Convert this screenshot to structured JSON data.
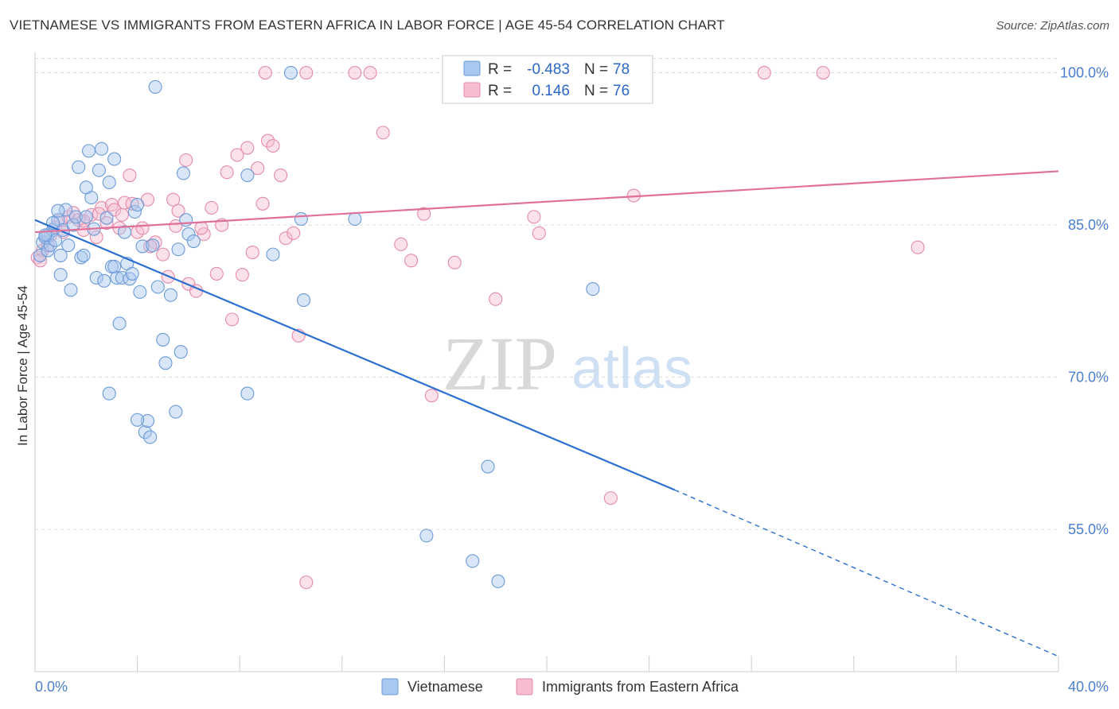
{
  "header": {
    "title": "VIETNAMESE VS IMMIGRANTS FROM EASTERN AFRICA IN LABOR FORCE | AGE 45-54 CORRELATION CHART",
    "source": "Source: ZipAtlas.com"
  },
  "watermark": {
    "zip": "ZIP",
    "atlas": "atlas"
  },
  "legend": {
    "r_label": "R =",
    "n_label": "N =",
    "rows": [
      {
        "series": "Vietnamese",
        "r": "-0.483",
        "n": "78"
      },
      {
        "series": "Immigrants from Eastern Africa",
        "r": "0.146",
        "n": "76"
      }
    ]
  },
  "colors": {
    "vietnamese_fill": "#a9c8f0",
    "vietnamese_stroke": "#6c9ad8",
    "vietnamese_line": "#2b6fd0",
    "eastern_africa_fill": "#f6bcd0",
    "eastern_africa_stroke": "#e48aaa",
    "eastern_africa_line": "#e0709a",
    "tick_label": "#4a7fd0",
    "grid": "#dddddd"
  },
  "chart_data": {
    "type": "scatter",
    "title": "VIETNAMESE VS IMMIGRANTS FROM EASTERN AFRICA IN LABOR FORCE | AGE 45-54 CORRELATION CHART",
    "xlabel": "",
    "ylabel": "In Labor Force | Age 45-54",
    "xlim": [
      0,
      40
    ],
    "ylim": [
      41,
      102
    ],
    "x_tick_labels": [
      "0.0%",
      "40.0%"
    ],
    "y_ticks": [
      55,
      70,
      85,
      100
    ],
    "y_tick_labels": [
      "55.0%",
      "70.0%",
      "85.0%",
      "100.0%"
    ],
    "grid": true,
    "legend_position": "top-center",
    "series": [
      {
        "name": "Vietnamese",
        "r": -0.483,
        "n": 78,
        "trend": {
          "x": [
            0,
            25
          ],
          "y": [
            85.5,
            58.9
          ],
          "dashed_to": [
            40,
            42.5
          ]
        },
        "points": [
          [
            0.2,
            82.0
          ],
          [
            0.3,
            83.3
          ],
          [
            0.4,
            83.8
          ],
          [
            0.5,
            82.5
          ],
          [
            0.5,
            84.0
          ],
          [
            0.6,
            83.0
          ],
          [
            0.7,
            84.5
          ],
          [
            0.8,
            83.5
          ],
          [
            0.9,
            85.5
          ],
          [
            1.0,
            82.0
          ],
          [
            1.1,
            84.5
          ],
          [
            1.2,
            86.5
          ],
          [
            1.3,
            83.0
          ],
          [
            1.4,
            78.6
          ],
          [
            1.5,
            85.0
          ],
          [
            1.6,
            85.8
          ],
          [
            1.7,
            90.7
          ],
          [
            1.8,
            81.8
          ],
          [
            1.9,
            82.0
          ],
          [
            2.0,
            85.8
          ],
          [
            2.1,
            92.3
          ],
          [
            2.2,
            87.7
          ],
          [
            2.3,
            84.6
          ],
          [
            2.4,
            79.8
          ],
          [
            2.5,
            90.4
          ],
          [
            2.6,
            92.5
          ],
          [
            2.7,
            79.5
          ],
          [
            2.8,
            85.7
          ],
          [
            2.9,
            89.2
          ],
          [
            3.0,
            80.9
          ],
          [
            3.1,
            80.9
          ],
          [
            3.2,
            79.8
          ],
          [
            3.3,
            75.3
          ],
          [
            3.4,
            79.8
          ],
          [
            3.5,
            84.3
          ],
          [
            3.6,
            81.2
          ],
          [
            3.7,
            79.7
          ],
          [
            3.8,
            80.2
          ],
          [
            3.9,
            86.3
          ],
          [
            4.0,
            87.0
          ],
          [
            4.1,
            78.4
          ],
          [
            4.2,
            82.9
          ],
          [
            4.3,
            64.6
          ],
          [
            4.4,
            65.7
          ],
          [
            4.5,
            64.1
          ],
          [
            4.6,
            83.0
          ],
          [
            4.7,
            98.6
          ],
          [
            4.8,
            78.9
          ],
          [
            5.0,
            73.7
          ],
          [
            5.1,
            71.4
          ],
          [
            5.3,
            78.1
          ],
          [
            5.5,
            66.6
          ],
          [
            5.6,
            82.6
          ],
          [
            5.8,
            90.1
          ],
          [
            5.9,
            85.5
          ],
          [
            6.0,
            84.1
          ],
          [
            6.2,
            83.4
          ],
          [
            2.9,
            68.4
          ],
          [
            5.7,
            72.5
          ],
          [
            4.0,
            65.8
          ],
          [
            8.3,
            89.9
          ],
          [
            8.3,
            68.4
          ],
          [
            9.3,
            82.1
          ],
          [
            10.0,
            100.0
          ],
          [
            10.4,
            85.6
          ],
          [
            10.5,
            77.6
          ],
          [
            12.5,
            85.6
          ],
          [
            15.3,
            54.4
          ],
          [
            17.7,
            61.2
          ],
          [
            17.1,
            51.9
          ],
          [
            18.1,
            49.9
          ],
          [
            21.8,
            78.7
          ],
          [
            1.0,
            80.1
          ],
          [
            0.4,
            84.0
          ],
          [
            0.9,
            86.4
          ],
          [
            3.1,
            91.5
          ],
          [
            2.0,
            88.7
          ],
          [
            0.7,
            85.2
          ]
        ]
      },
      {
        "name": "Immigrants from Eastern Africa",
        "r": 0.146,
        "n": 76,
        "trend": {
          "x": [
            0,
            40
          ],
          "y": [
            84.3,
            90.3
          ]
        },
        "points": [
          [
            0.1,
            81.8
          ],
          [
            0.3,
            82.5
          ],
          [
            0.5,
            83.0
          ],
          [
            0.6,
            84.0
          ],
          [
            0.8,
            84.8
          ],
          [
            1.0,
            85.5
          ],
          [
            1.1,
            84.3
          ],
          [
            1.3,
            85.8
          ],
          [
            1.5,
            86.2
          ],
          [
            1.7,
            85.5
          ],
          [
            1.9,
            84.5
          ],
          [
            2.2,
            86.0
          ],
          [
            2.4,
            83.8
          ],
          [
            2.6,
            86.7
          ],
          [
            2.8,
            85.2
          ],
          [
            3.0,
            87.0
          ],
          [
            3.1,
            86.5
          ],
          [
            3.3,
            84.7
          ],
          [
            3.5,
            87.2
          ],
          [
            3.7,
            89.9
          ],
          [
            3.8,
            87.1
          ],
          [
            4.0,
            84.3
          ],
          [
            4.2,
            84.7
          ],
          [
            4.4,
            87.5
          ],
          [
            4.7,
            83.3
          ],
          [
            5.0,
            82.1
          ],
          [
            5.2,
            79.9
          ],
          [
            5.4,
            87.5
          ],
          [
            5.6,
            86.4
          ],
          [
            5.9,
            91.4
          ],
          [
            6.0,
            79.2
          ],
          [
            6.3,
            78.5
          ],
          [
            6.6,
            84.1
          ],
          [
            6.9,
            86.7
          ],
          [
            7.1,
            80.2
          ],
          [
            7.3,
            85.0
          ],
          [
            7.5,
            90.2
          ],
          [
            7.7,
            75.7
          ],
          [
            7.9,
            91.9
          ],
          [
            8.1,
            80.1
          ],
          [
            8.3,
            92.6
          ],
          [
            8.5,
            82.3
          ],
          [
            8.7,
            90.6
          ],
          [
            8.9,
            87.1
          ],
          [
            9.1,
            93.3
          ],
          [
            9.3,
            92.8
          ],
          [
            9.6,
            89.9
          ],
          [
            9.8,
            83.7
          ],
          [
            10.1,
            84.2
          ],
          [
            10.3,
            74.1
          ],
          [
            10.6,
            100.0
          ],
          [
            12.5,
            100.0
          ],
          [
            13.1,
            100.0
          ],
          [
            13.6,
            94.1
          ],
          [
            14.3,
            83.1
          ],
          [
            14.7,
            81.5
          ],
          [
            15.2,
            86.1
          ],
          [
            15.5,
            68.2
          ],
          [
            16.4,
            81.3
          ],
          [
            18.0,
            77.7
          ],
          [
            19.5,
            85.8
          ],
          [
            19.7,
            84.2
          ],
          [
            22.5,
            58.1
          ],
          [
            23.4,
            87.9
          ],
          [
            28.5,
            100.0
          ],
          [
            30.8,
            100.0
          ],
          [
            34.5,
            82.8
          ],
          [
            10.6,
            49.8
          ],
          [
            9.0,
            100.0
          ],
          [
            1.9,
            85.4
          ],
          [
            2.5,
            86.1
          ],
          [
            3.4,
            86.0
          ],
          [
            4.5,
            82.9
          ],
          [
            5.5,
            84.9
          ],
          [
            6.5,
            84.7
          ],
          [
            0.2,
            81.5
          ]
        ]
      }
    ]
  }
}
